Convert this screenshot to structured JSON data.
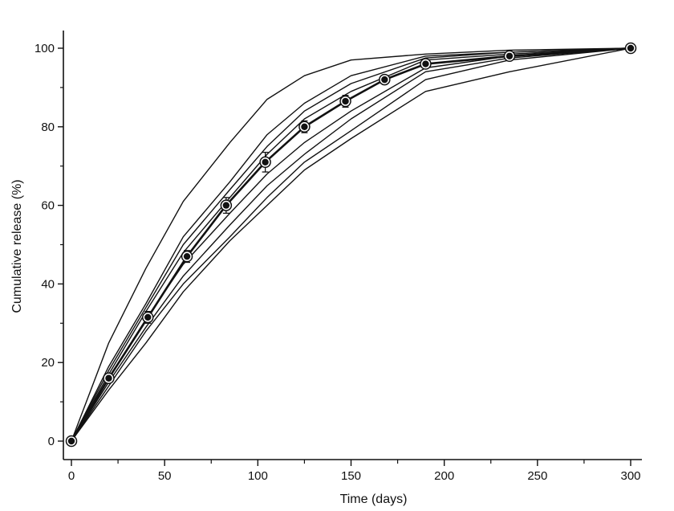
{
  "chart_data": {
    "type": "line",
    "title": "",
    "xlabel": "Time (days)",
    "ylabel": "Cumulative release (%)",
    "xlim": [
      0,
      300
    ],
    "ylim": [
      0,
      100
    ],
    "xticks": [
      "0",
      "50",
      "100",
      "150",
      "200",
      "250",
      "300"
    ],
    "yticks": [
      "0",
      "20",
      "40",
      "60",
      "80",
      "100"
    ],
    "grid": false,
    "legend": "none",
    "colors": {
      "line": "#111111",
      "marker": "#111111",
      "background": "#ffffff"
    },
    "series": [
      {
        "x": [
          0,
          20,
          40,
          60,
          85,
          105,
          125,
          150,
          190,
          235,
          300
        ],
        "y": [
          0,
          25,
          44,
          61,
          76,
          87,
          93,
          97,
          98.5,
          99.5,
          100
        ]
      },
      {
        "x": [
          0,
          20,
          40,
          60,
          85,
          105,
          125,
          150,
          190,
          235,
          300
        ],
        "y": [
          0,
          19,
          35,
          52,
          66,
          78,
          86,
          93,
          98,
          99,
          100
        ]
      },
      {
        "x": [
          0,
          20,
          40,
          60,
          85,
          105,
          125,
          150,
          190,
          235,
          300
        ],
        "y": [
          0,
          18,
          34,
          50,
          64,
          75,
          84,
          91,
          97.5,
          99,
          100
        ]
      },
      {
        "x": [
          0,
          20,
          40,
          60,
          85,
          105,
          125,
          150,
          190,
          235,
          300
        ],
        "y": [
          0,
          17,
          33,
          48,
          62,
          73,
          82,
          89,
          97,
          98.5,
          100
        ]
      },
      {
        "x": [
          0,
          20,
          40,
          60,
          85,
          105,
          125,
          150,
          190,
          235,
          300
        ],
        "y": [
          0,
          16,
          31,
          45,
          58,
          68,
          76,
          84,
          95,
          98,
          100
        ]
      },
      {
        "x": [
          0,
          20,
          40,
          60,
          85,
          105,
          125,
          150,
          190,
          235,
          300
        ],
        "y": [
          0,
          15,
          29,
          42,
          55,
          65,
          73,
          82,
          94,
          97.5,
          100
        ]
      },
      {
        "x": [
          0,
          20,
          40,
          60,
          85,
          105,
          125,
          150,
          190,
          235,
          300
        ],
        "y": [
          0,
          14,
          28,
          40,
          52,
          62,
          71,
          79,
          92,
          97,
          100
        ]
      },
      {
        "x": [
          0,
          20,
          40,
          60,
          85,
          105,
          125,
          150,
          190,
          235,
          300
        ],
        "y": [
          0,
          13,
          25,
          38,
          51,
          60,
          69,
          77,
          89,
          94,
          100
        ]
      }
    ],
    "mean_series": {
      "x": [
        0,
        20,
        41,
        62,
        83,
        104,
        125,
        147,
        168,
        190,
        235,
        300
      ],
      "y": [
        0,
        16,
        31.5,
        47,
        60,
        71,
        80,
        86.5,
        92,
        96,
        98,
        100
      ],
      "err": [
        0,
        1,
        1.5,
        1.5,
        2,
        2.5,
        1.5,
        1.5,
        1,
        1,
        0.5,
        0
      ]
    }
  }
}
